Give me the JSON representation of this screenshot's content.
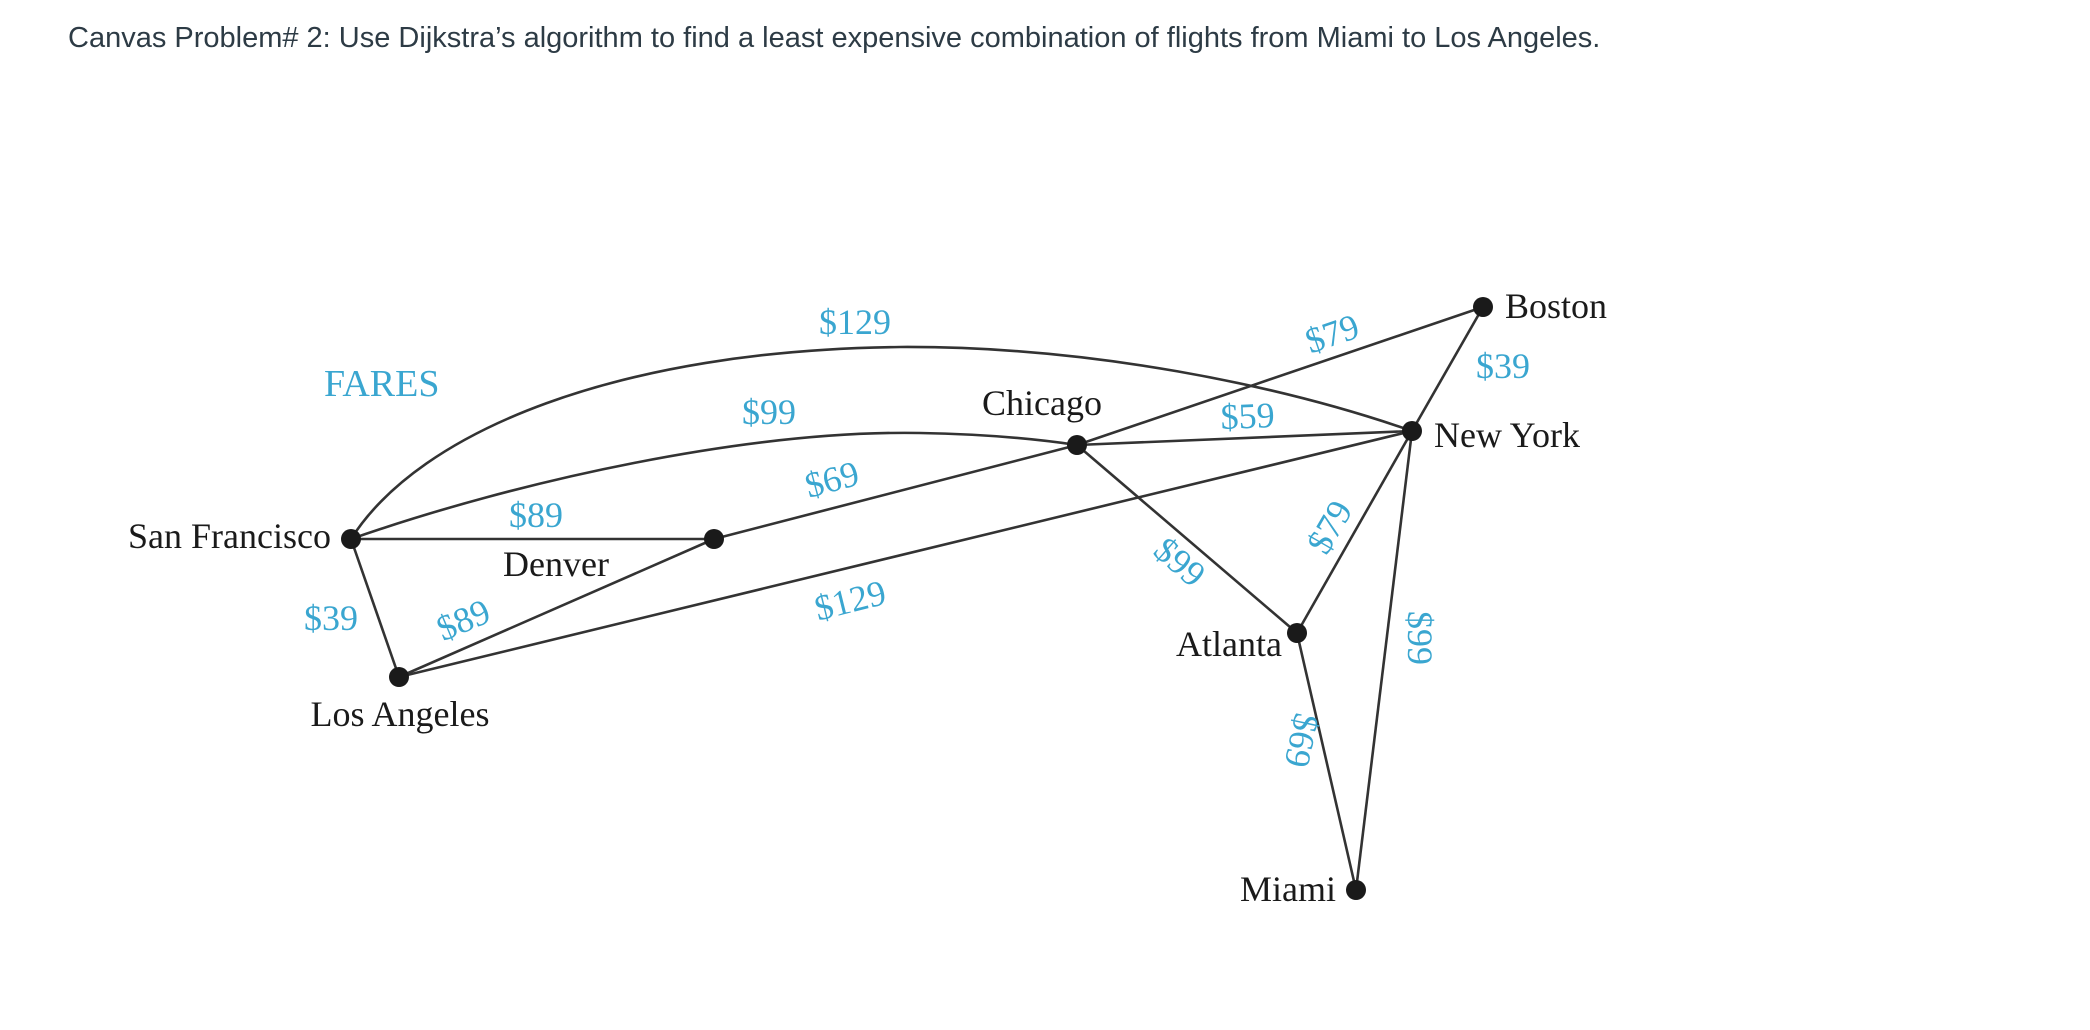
{
  "problem": {
    "text": "Canvas Problem# 2: Use Dijkstra’s algorithm to find a least expensive combination of flights from Miami to Los Angeles."
  },
  "diagram": {
    "title": "FARES",
    "colors": {
      "fare": "#3aa6d0",
      "edge": "#333333",
      "node": "#1a1a1a",
      "text": "#2d3b45"
    },
    "cities": {
      "san_francisco": "San Francisco",
      "los_angeles": "Los Angeles",
      "denver": "Denver",
      "chicago": "Chicago",
      "new_york": "New York",
      "boston": "Boston",
      "atlanta": "Atlanta",
      "miami": "Miami"
    },
    "fares": {
      "sf_ny_top": "$129",
      "sf_chicago": "$99",
      "sf_denver": "$89",
      "sf_la": "$39",
      "la_denver": "$89",
      "denver_chicago": "$69",
      "la_ny": "$129",
      "chicago_boston": "$79",
      "chicago_ny": "$59",
      "chicago_atlanta": "$99",
      "boston_ny": "$39",
      "ny_atlanta": "$79",
      "ny_miami": "$99",
      "atlanta_miami": "$69"
    }
  }
}
